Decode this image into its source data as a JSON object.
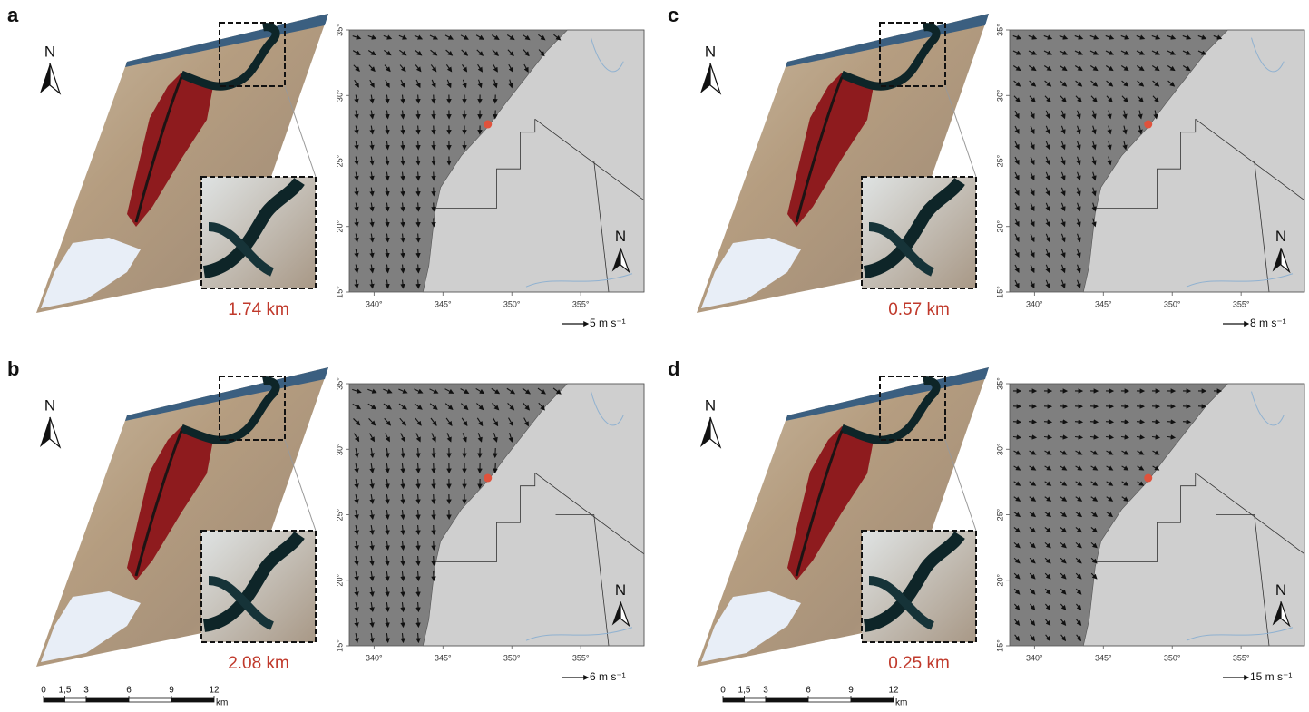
{
  "panels": [
    {
      "label": "a",
      "north": "N",
      "distance": "1.74 km",
      "map_north": "N",
      "wind_scale": "5 m s⁻¹"
    },
    {
      "label": "b",
      "north": "N",
      "distance": "2.08 km",
      "map_north": "N",
      "wind_scale": "6 m s⁻¹"
    },
    {
      "label": "c",
      "north": "N",
      "distance": "0.57 km",
      "map_north": "N",
      "wind_scale": "8 m s⁻¹"
    },
    {
      "label": "d",
      "north": "N",
      "distance": "0.25 km",
      "map_north": "N",
      "wind_scale": "15 m s⁻¹"
    }
  ],
  "map_axes": {
    "lon_range": [
      338.2,
      359.6
    ],
    "lat_range": [
      15,
      35
    ],
    "lon_ticks": [
      {
        "value": 340,
        "label": "340°"
      },
      {
        "value": 345,
        "label": "345°"
      },
      {
        "value": 350,
        "label": "350°"
      },
      {
        "value": 355,
        "label": "355°"
      }
    ],
    "lat_ticks": [
      {
        "value": 15,
        "label": "15°"
      },
      {
        "value": 20,
        "label": "20°"
      },
      {
        "value": 25,
        "label": "25°"
      },
      {
        "value": 30,
        "label": "30°"
      },
      {
        "value": 35,
        "label": "35°"
      }
    ]
  },
  "scale_bar": {
    "range": [
      0,
      12
    ],
    "ticks": [
      0,
      {
        "value": 1.5,
        "label": "1,5"
      },
      3,
      6,
      9,
      12
    ],
    "unit": "km"
  }
}
